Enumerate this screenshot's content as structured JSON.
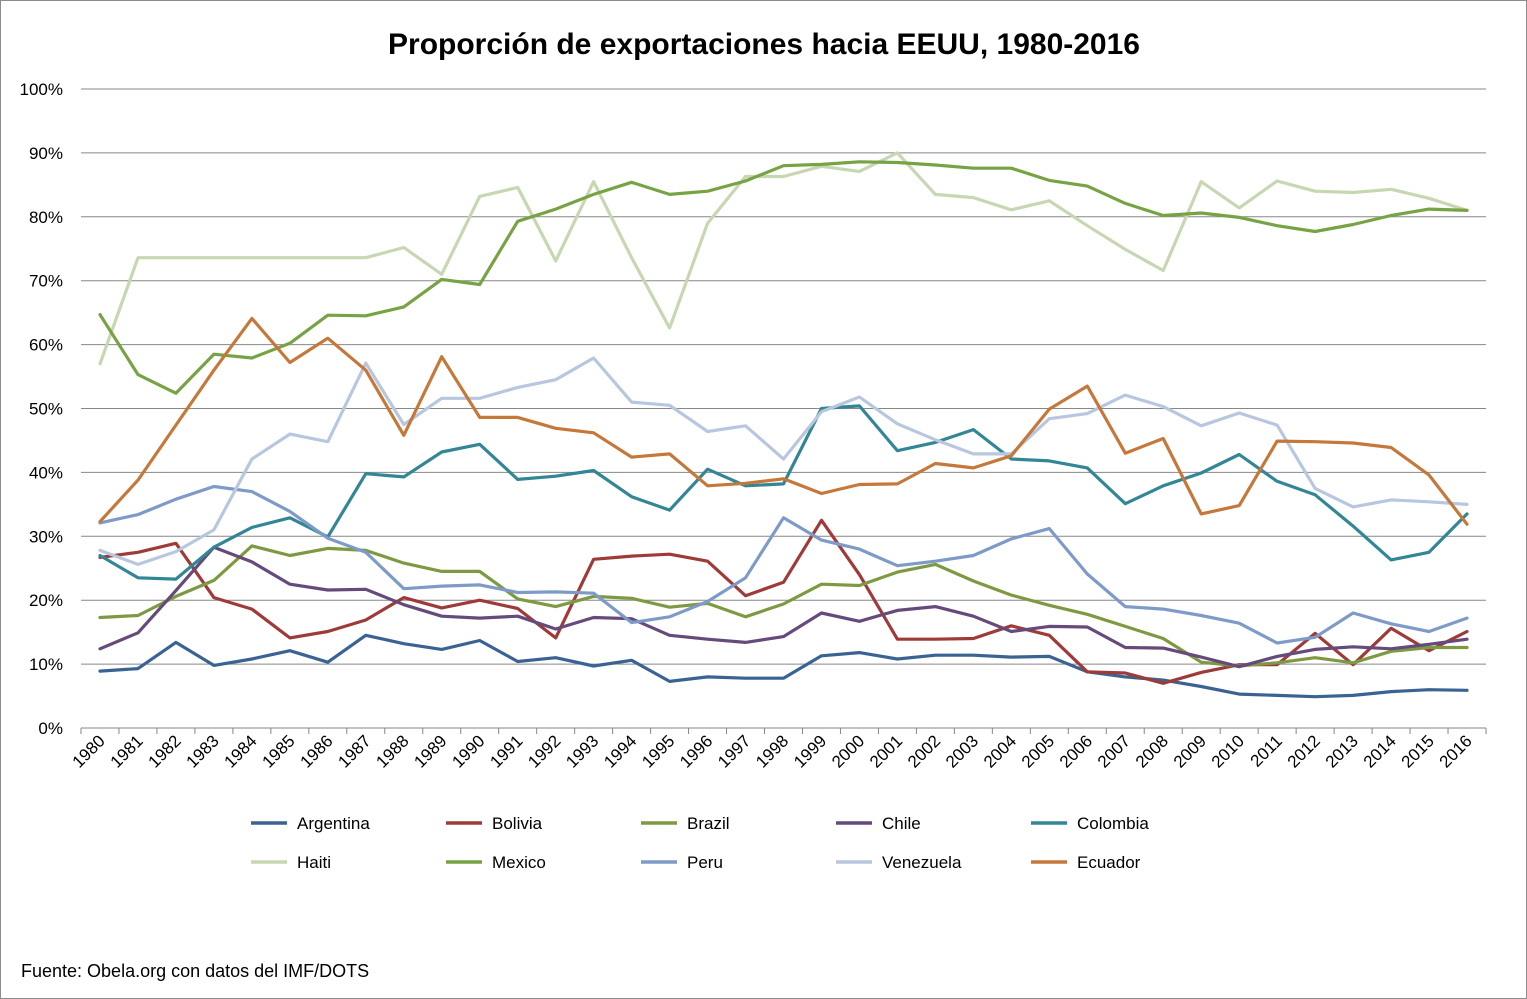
{
  "chart_data": {
    "type": "line",
    "title": "Proporción de exportaciones hacia EEUU, 1980-2016",
    "xlabel": "",
    "ylabel": "",
    "source": "Fuente: Obela.org con datos del IMF/DOTS",
    "ylim": [
      0,
      100
    ],
    "y_ticks": [
      "0%",
      "10%",
      "20%",
      "30%",
      "40%",
      "50%",
      "60%",
      "70%",
      "80%",
      "90%",
      "100%"
    ],
    "grid": true,
    "legend_position": "bottom",
    "x": [
      "1980",
      "1981",
      "1982",
      "1983",
      "1984",
      "1985",
      "1986",
      "1987",
      "1988",
      "1989",
      "1990",
      "1991",
      "1992",
      "1993",
      "1994",
      "1995",
      "1996",
      "1997",
      "1998",
      "1999",
      "2000",
      "2001",
      "2002",
      "2003",
      "2004",
      "2005",
      "2006",
      "2007",
      "2008",
      "2009",
      "2010",
      "2011",
      "2012",
      "2013",
      "2014",
      "2015",
      "2016"
    ],
    "series": [
      {
        "name": "Argentina",
        "color": "#3a6393",
        "values": [
          8.9,
          9.3,
          13.4,
          9.8,
          10.8,
          12.1,
          10.3,
          14.5,
          13.2,
          12.3,
          13.7,
          10.4,
          11.0,
          9.7,
          10.6,
          7.3,
          8.0,
          7.8,
          7.8,
          11.3,
          11.8,
          10.8,
          11.4,
          11.4,
          11.1,
          11.2,
          8.8,
          8.0,
          7.5,
          6.5,
          5.3,
          5.1,
          4.9,
          5.1,
          5.7,
          6.0,
          5.9
        ]
      },
      {
        "name": "Bolivia",
        "color": "#9e3b38",
        "values": [
          26.7,
          27.5,
          28.9,
          20.4,
          18.6,
          14.1,
          15.1,
          16.9,
          20.4,
          18.8,
          20.0,
          18.7,
          14.1,
          26.4,
          26.9,
          27.2,
          26.1,
          20.7,
          22.8,
          32.5,
          24.0,
          13.9,
          13.9,
          14.0,
          16.0,
          14.5,
          8.8,
          8.6,
          7.0,
          8.7,
          9.9,
          9.9,
          14.8,
          9.9,
          15.6,
          12.1,
          15.1
        ]
      },
      {
        "name": "Brazil",
        "color": "#7d9a42",
        "values": [
          17.3,
          17.6,
          20.6,
          23.1,
          28.5,
          27.0,
          28.1,
          27.8,
          25.8,
          24.5,
          24.5,
          20.2,
          19.0,
          20.6,
          20.3,
          18.9,
          19.5,
          17.4,
          19.4,
          22.5,
          22.3,
          24.4,
          25.6,
          23.0,
          20.8,
          19.2,
          17.8,
          15.9,
          14.0,
          10.3,
          9.7,
          10.2,
          11.0,
          10.2,
          12.0,
          12.6,
          12.6
        ]
      },
      {
        "name": "Chile",
        "color": "#664a7b",
        "values": [
          12.4,
          14.9,
          21.5,
          28.3,
          26.0,
          22.5,
          21.6,
          21.7,
          19.3,
          17.5,
          17.2,
          17.5,
          15.5,
          17.3,
          17.1,
          14.5,
          13.9,
          13.4,
          14.3,
          18.0,
          16.7,
          18.4,
          19.0,
          17.5,
          15.1,
          15.9,
          15.8,
          12.6,
          12.5,
          11.1,
          9.6,
          11.2,
          12.3,
          12.7,
          12.4,
          13.1,
          13.9
        ]
      },
      {
        "name": "Colombia",
        "color": "#338696",
        "values": [
          27.0,
          23.5,
          23.3,
          28.3,
          31.4,
          32.9,
          29.9,
          39.8,
          39.3,
          43.2,
          44.4,
          38.9,
          39.4,
          40.3,
          36.2,
          34.1,
          40.5,
          37.9,
          38.2,
          50.0,
          50.4,
          43.4,
          44.7,
          46.7,
          42.1,
          41.8,
          40.7,
          35.1,
          37.9,
          39.9,
          42.8,
          38.6,
          36.5,
          31.6,
          26.3,
          27.5,
          33.5
        ]
      },
      {
        "name": "Haiti",
        "color": "#c6d7b2",
        "values": [
          57.0,
          73.6,
          73.6,
          73.6,
          73.6,
          73.6,
          73.6,
          73.6,
          75.2,
          71.0,
          83.2,
          84.6,
          73.1,
          85.5,
          73.6,
          62.6,
          79.0,
          86.3,
          86.3,
          87.9,
          87.1,
          90.0,
          83.5,
          83.0,
          81.1,
          82.5,
          78.6,
          74.9,
          71.6,
          85.5,
          81.4,
          85.6,
          84.0,
          83.8,
          84.3,
          82.9,
          81.0
        ]
      },
      {
        "name": "Mexico",
        "color": "#77a345",
        "values": [
          64.7,
          55.3,
          52.4,
          58.5,
          57.9,
          60.2,
          64.6,
          64.5,
          65.9,
          70.2,
          69.4,
          79.3,
          81.2,
          83.5,
          85.4,
          83.5,
          84.0,
          85.6,
          88.0,
          88.2,
          88.6,
          88.5,
          88.1,
          87.6,
          87.6,
          85.7,
          84.8,
          82.1,
          80.2,
          80.6,
          79.9,
          78.6,
          77.7,
          78.8,
          80.2,
          81.2,
          81.0
        ]
      },
      {
        "name": "Peru",
        "color": "#7e9bc8",
        "values": [
          32.1,
          33.4,
          35.8,
          37.8,
          37.0,
          33.9,
          29.7,
          27.5,
          21.8,
          22.2,
          22.4,
          21.2,
          21.3,
          21.1,
          16.5,
          17.4,
          19.8,
          23.5,
          32.9,
          29.4,
          28.0,
          25.4,
          26.1,
          27.0,
          29.6,
          31.2,
          24.1,
          19.0,
          18.6,
          17.6,
          16.4,
          13.3,
          14.2,
          18.0,
          16.3,
          15.1,
          17.2
        ]
      },
      {
        "name": "Venezuela",
        "color": "#b8c7df",
        "values": [
          27.8,
          25.6,
          27.6,
          31.0,
          42.1,
          46.0,
          44.8,
          57.1,
          47.5,
          51.6,
          51.6,
          53.3,
          54.5,
          57.9,
          51.0,
          50.5,
          46.4,
          47.3,
          42.1,
          49.5,
          51.8,
          47.6,
          45.1,
          42.9,
          42.9,
          48.4,
          49.2,
          52.1,
          50.3,
          47.3,
          49.3,
          47.4,
          37.5,
          34.6,
          35.7,
          35.4,
          35.0
        ]
      },
      {
        "name": "Ecuador",
        "color": "#c5783a",
        "values": [
          32.3,
          38.8,
          47.4,
          56.0,
          64.1,
          57.2,
          61.0,
          56.0,
          45.8,
          58.1,
          48.6,
          48.6,
          46.9,
          46.2,
          42.4,
          42.9,
          37.9,
          38.3,
          39.0,
          36.7,
          38.1,
          38.2,
          41.4,
          40.7,
          42.6,
          49.9,
          53.5,
          43.0,
          45.3,
          33.5,
          34.8,
          44.9,
          44.8,
          44.6,
          43.9,
          39.6,
          31.9
        ]
      }
    ]
  }
}
